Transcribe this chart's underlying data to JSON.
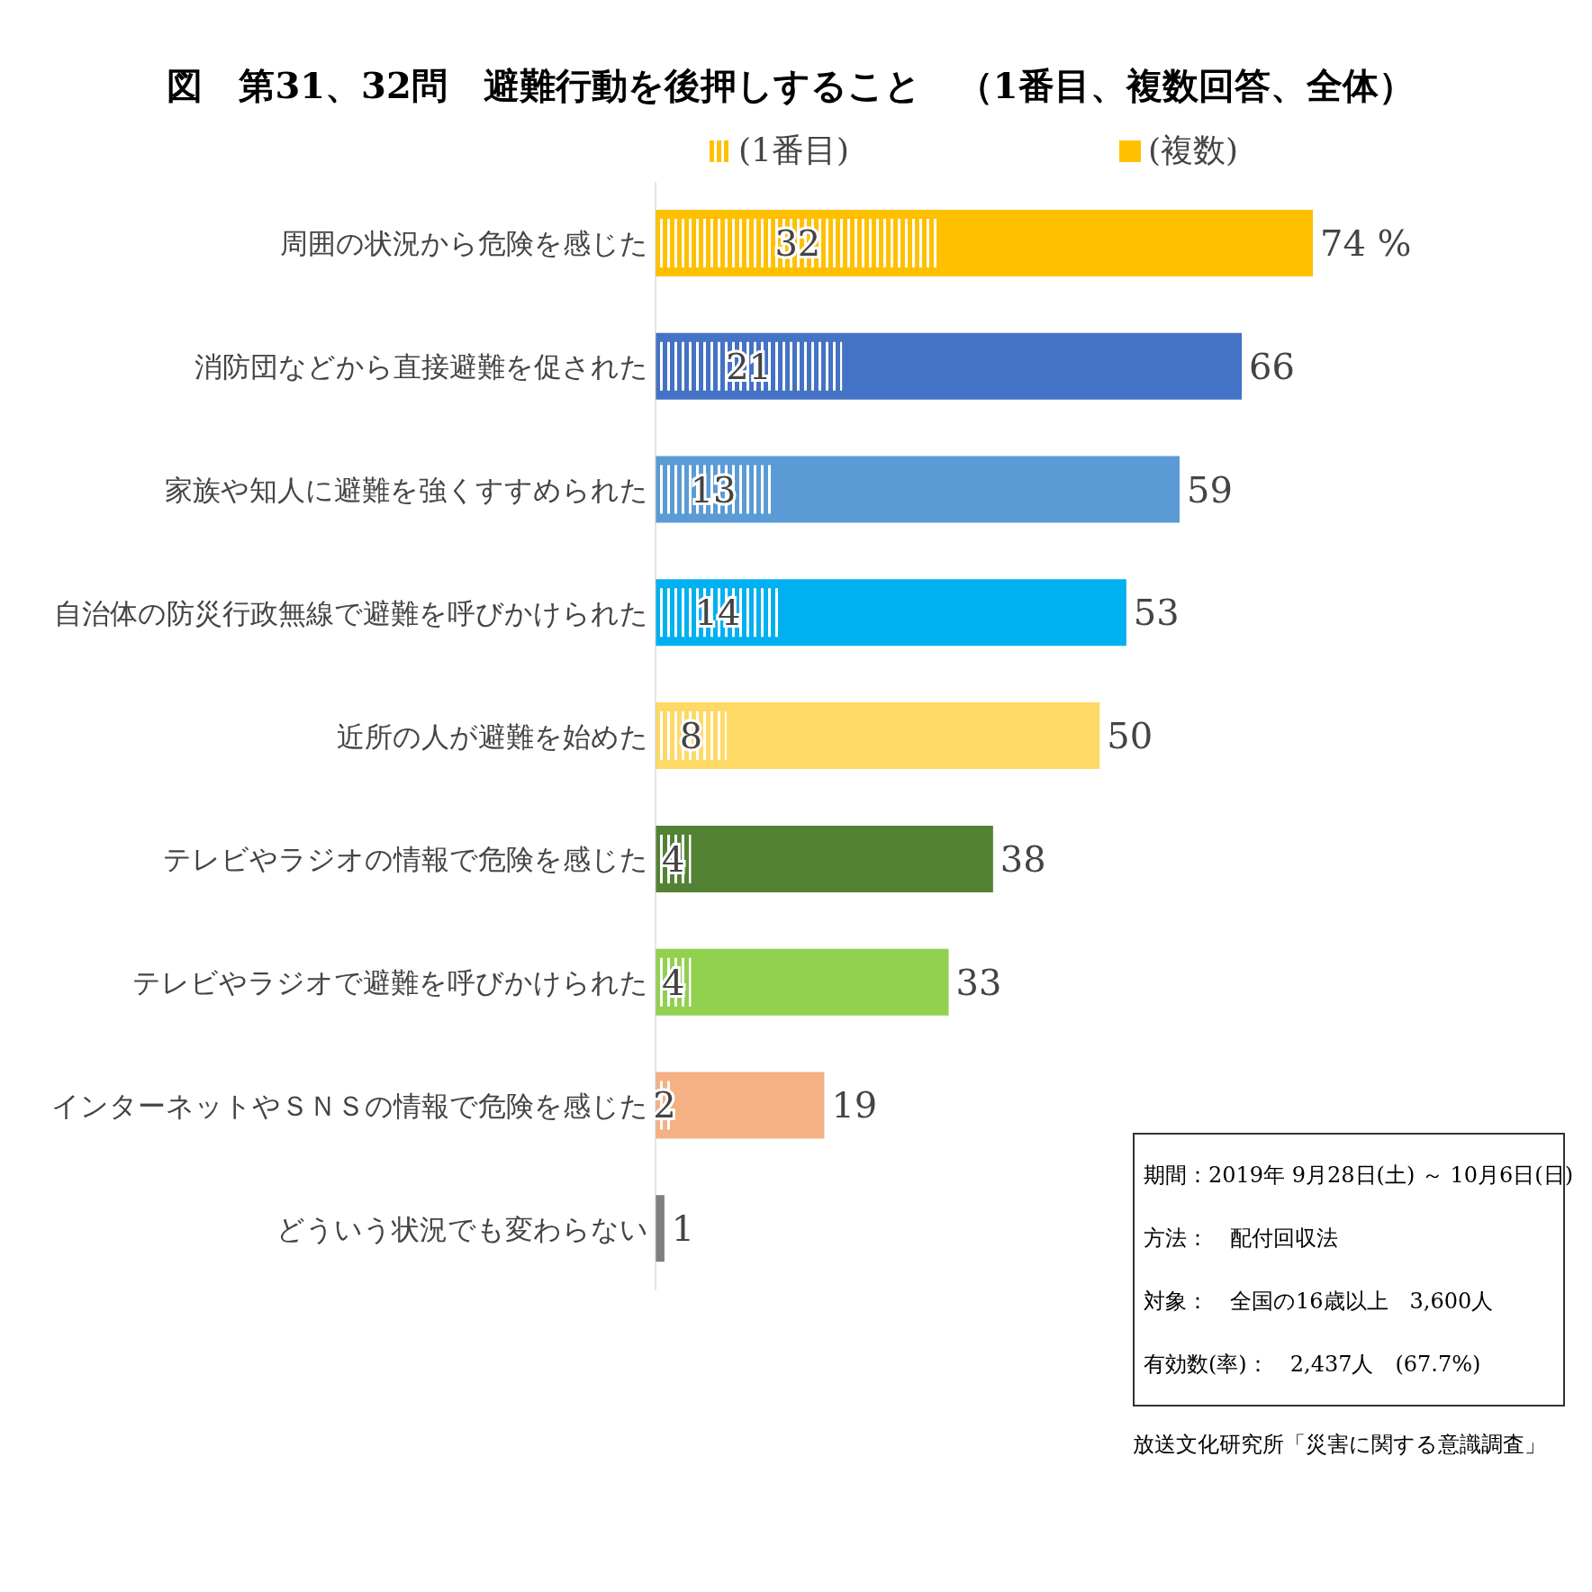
{
  "chart_data": {
    "type": "bar",
    "orientation": "horizontal",
    "title": "図　第31、32問　避難行動を後押しすること　（1番目、複数回答、全体）",
    "categories": [
      "周囲の状況から危険を感じた",
      "消防団などから直接避難を促された",
      "家族や知人に避難を強くすすめられた",
      "自治体の防災行政無線で避難を呼びかけられた",
      "近所の人が避難を始めた",
      "テレビやラジオの情報で危険を感じた",
      "テレビやラジオで避難を呼びかけられた",
      "インターネットやＳＮＳの情報で危険を感じた",
      "どういう状況でも変わらない"
    ],
    "series": [
      {
        "name": "(1番目)",
        "colors": [
          "#ffc000",
          "#4472c4",
          "#5b9bd5",
          "#00b0f0",
          "#ffd966",
          "#548235",
          "#92d050",
          "#f4b183",
          "#7f7f7f"
        ],
        "values": [
          32,
          21,
          13,
          14,
          8,
          4,
          4,
          2,
          null
        ],
        "value_labels": [
          "32",
          "21",
          "13",
          "14",
          "8",
          "4",
          "4",
          "2",
          null
        ]
      },
      {
        "name": "(複数)",
        "colors": [
          "#ffc000",
          "#4472c4",
          "#5b9bd5",
          "#00b0f0",
          "#ffd966",
          "#548235",
          "#92d050",
          "#f4b183",
          "#7f7f7f"
        ],
        "values": [
          74,
          66,
          59,
          53,
          50,
          38,
          33,
          19,
          1
        ],
        "value_labels": [
          "74 %",
          "66",
          "59",
          "53",
          "50",
          "38",
          "33",
          "19",
          "1"
        ]
      }
    ],
    "legend": "top",
    "tick_labels": "y",
    "annotations": [
      "期間：2019年 9月28日(土) ～ 10月6日(日)",
      "方法：　配付回収法",
      "対象：　全国の16歳以上　3,600人",
      "有効数(率)：　2,437人　(67.7%)",
      "放送文化研究所「災害に関する意識調査」"
    ]
  }
}
